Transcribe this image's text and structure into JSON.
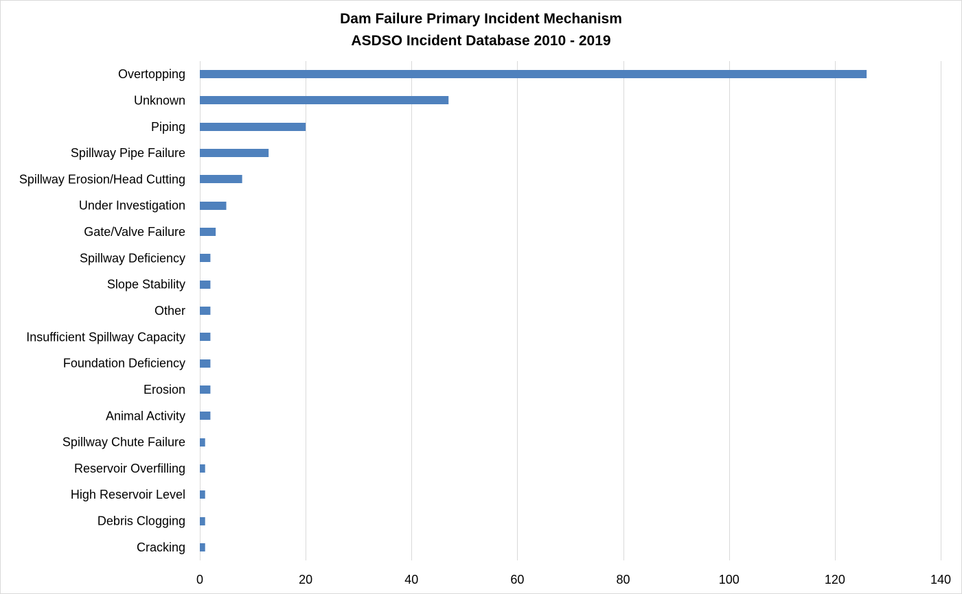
{
  "chart_data": {
    "type": "bar",
    "orientation": "horizontal",
    "title": "Dam Failure Primary Incident Mechanism",
    "subtitle": "ASDSO Incident Database 2010 - 2019",
    "xlabel": "",
    "ylabel": "",
    "xlim": [
      0,
      140
    ],
    "x_ticks": [
      0,
      20,
      40,
      60,
      80,
      100,
      120,
      140
    ],
    "grid": "vertical",
    "bar_color": "#4f81bd",
    "categories": [
      "Overtopping",
      "Unknown",
      "Piping",
      "Spillway Pipe Failure",
      "Spillway Erosion/Head Cutting",
      "Under Investigation",
      "Gate/Valve Failure",
      "Spillway Deficiency",
      "Slope Stability",
      "Other",
      "Insufficient Spillway Capacity",
      "Foundation Deficiency",
      "Erosion",
      "Animal Activity",
      "Spillway Chute Failure",
      "Reservoir Overfilling",
      "High Reservoir Level",
      "Debris Clogging",
      "Cracking"
    ],
    "values": [
      126,
      47,
      20,
      13,
      8,
      5,
      3,
      2,
      2,
      2,
      2,
      2,
      2,
      2,
      1,
      1,
      1,
      1,
      1
    ]
  }
}
